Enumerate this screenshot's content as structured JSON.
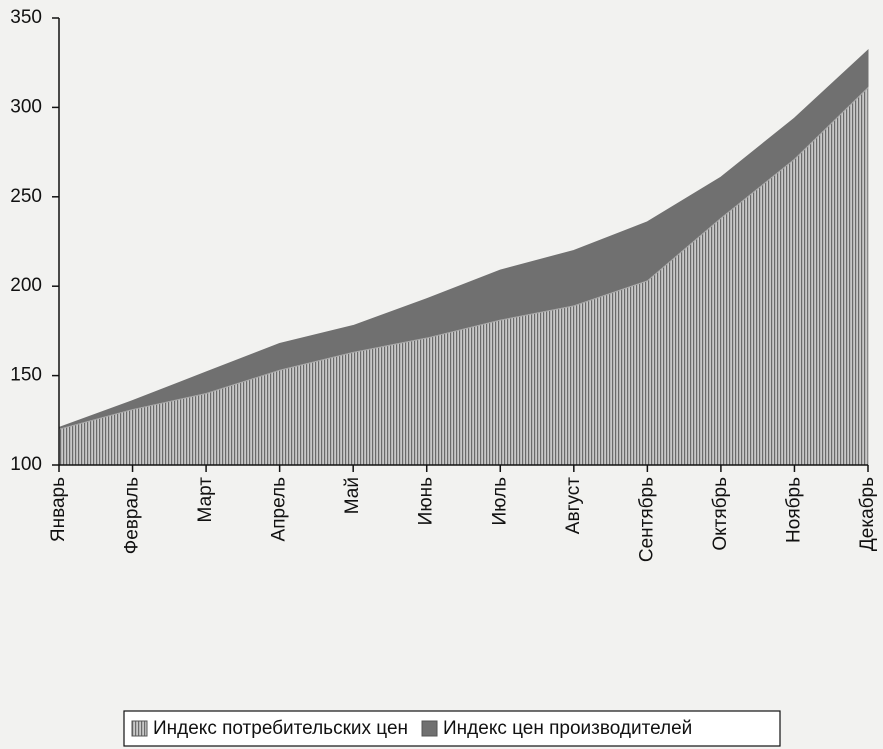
{
  "chart_data": {
    "type": "area",
    "categories": [
      "Январь",
      "Февраль",
      "Март",
      "Апрель",
      "Май",
      "Июнь",
      "Июль",
      "Август",
      "Сентябрь",
      "Октябрь",
      "Ноябрь",
      "Декабрь"
    ],
    "series": [
      {
        "name": "Индекс потребительских цен",
        "color": "#a8a8a8",
        "values": [
          120,
          131,
          140,
          153,
          163,
          171,
          181,
          189,
          203,
          238,
          271,
          311
        ]
      },
      {
        "name": "Индекс цен производителей",
        "color": "#707070",
        "values": [
          121,
          136,
          152,
          168,
          178,
          193,
          209,
          220,
          236,
          261,
          294,
          332
        ]
      }
    ],
    "ylim": [
      100,
      350
    ],
    "yticks": [
      100,
      150,
      200,
      250,
      300,
      350
    ],
    "legend": "bottom"
  }
}
